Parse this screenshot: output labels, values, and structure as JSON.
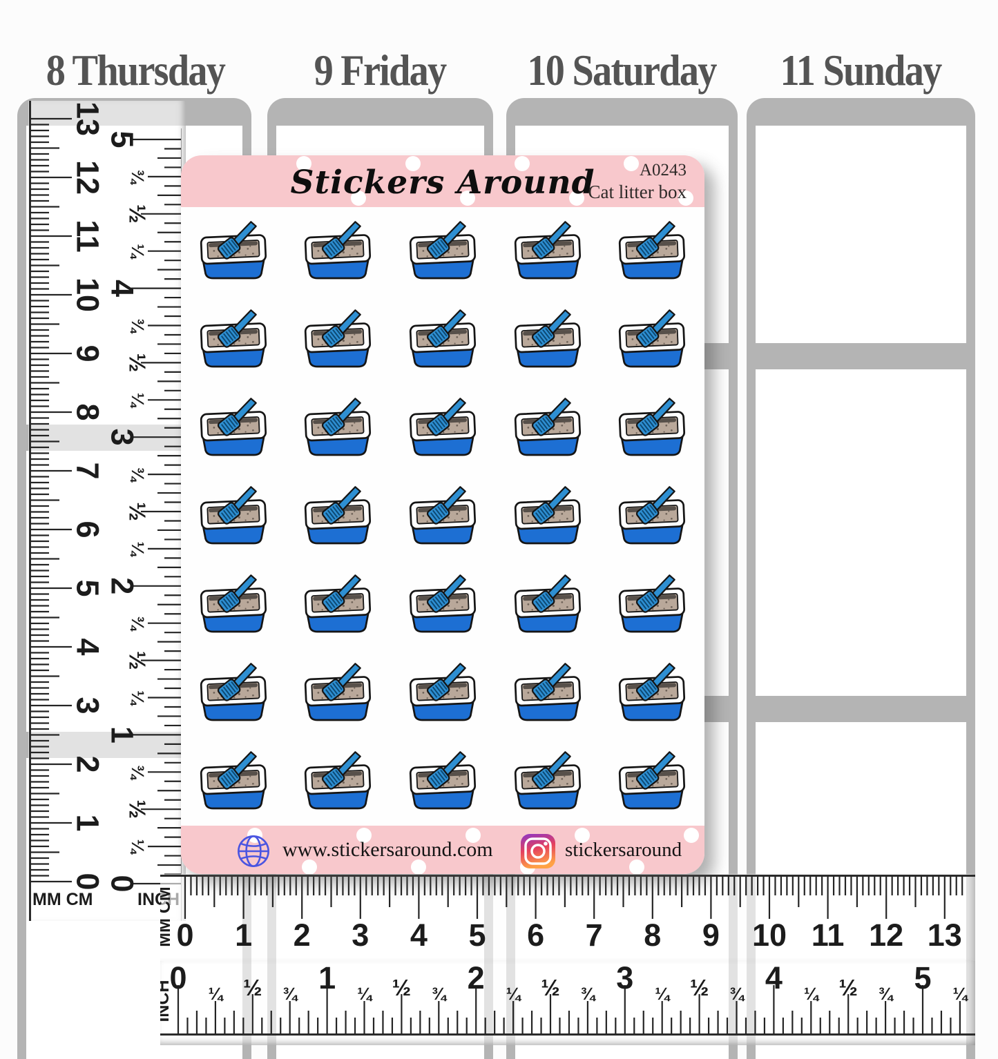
{
  "planner": {
    "days": [
      {
        "label": "8 Thursday"
      },
      {
        "label": "9 Friday"
      },
      {
        "label": "10 Saturday"
      },
      {
        "label": "11 Sunday"
      }
    ]
  },
  "sticker_sheet": {
    "brand": "Stickers Around",
    "sku": "A0243",
    "product_name": "Cat litter box",
    "website": "www.stickersaround.com",
    "instagram_handle": "stickersaround",
    "grid": {
      "rows": 7,
      "columns": 5,
      "total_stickers": 35,
      "sticker": "cat-litter-box"
    },
    "colors": {
      "band_pink": "#f8c8cc",
      "tray_blue": "#1d6fd3",
      "scoop_blue": "#2e8fd2",
      "litter_tan": "#b9a89a",
      "outline": "#151515",
      "planner_gray": "#b4b4b4"
    }
  },
  "rulers": {
    "vertical": {
      "cm": {
        "label": "MM CM",
        "numbers": [
          0,
          1,
          2,
          3,
          4,
          5,
          6,
          7,
          8,
          9,
          10,
          11,
          12,
          13
        ]
      },
      "inch": {
        "label": "INCH",
        "numbers": [
          0,
          1,
          2,
          3,
          4,
          5
        ],
        "fractions": [
          "¼",
          "½",
          "¾"
        ]
      }
    },
    "horizontal": {
      "cm": {
        "label": "MM CM",
        "numbers": [
          0,
          1,
          2,
          3,
          4,
          5,
          6,
          7,
          8,
          9,
          10,
          11,
          12,
          13
        ]
      },
      "inch": {
        "label": "INCH",
        "numbers": [
          0,
          1,
          2,
          3,
          4,
          5
        ],
        "fractions": [
          "¼",
          "½",
          "¾"
        ]
      }
    }
  }
}
